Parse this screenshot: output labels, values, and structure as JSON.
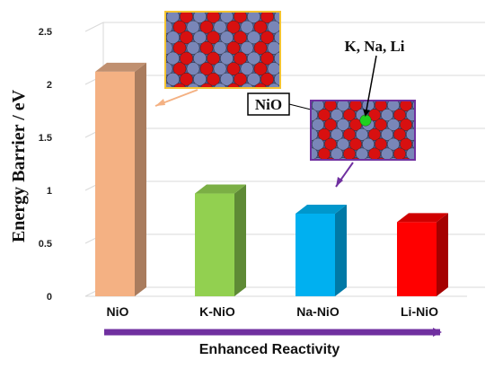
{
  "chart_data": {
    "type": "bar",
    "ylabel": "Energy Barrier / eV",
    "xlabel": "",
    "categories": [
      "NiO",
      "K-NiO",
      "Na-NiO",
      "Li-NiO"
    ],
    "values": [
      2.12,
      0.97,
      0.78,
      0.7
    ],
    "yticks": [
      "0",
      "0.5",
      "1",
      "1.5",
      "2",
      "2.5"
    ],
    "ylim": [
      0,
      2.5
    ],
    "grid": true,
    "bar_colors": [
      {
        "front": "#F4B183",
        "side": "#A97C5E",
        "top": "#C09070"
      },
      {
        "front": "#92D050",
        "side": "#5E8A35",
        "top": "#7BAF45"
      },
      {
        "front": "#00B0F0",
        "side": "#0079A6",
        "top": "#0097CC"
      },
      {
        "front": "#FF0000",
        "side": "#A50000",
        "top": "#D00000"
      }
    ],
    "arrow_label": "Enhanced Reactivity",
    "arrow_color": "#7030A0",
    "annotations": {
      "nio_label": "NiO",
      "dopant_label": "K, Na, Li"
    }
  }
}
